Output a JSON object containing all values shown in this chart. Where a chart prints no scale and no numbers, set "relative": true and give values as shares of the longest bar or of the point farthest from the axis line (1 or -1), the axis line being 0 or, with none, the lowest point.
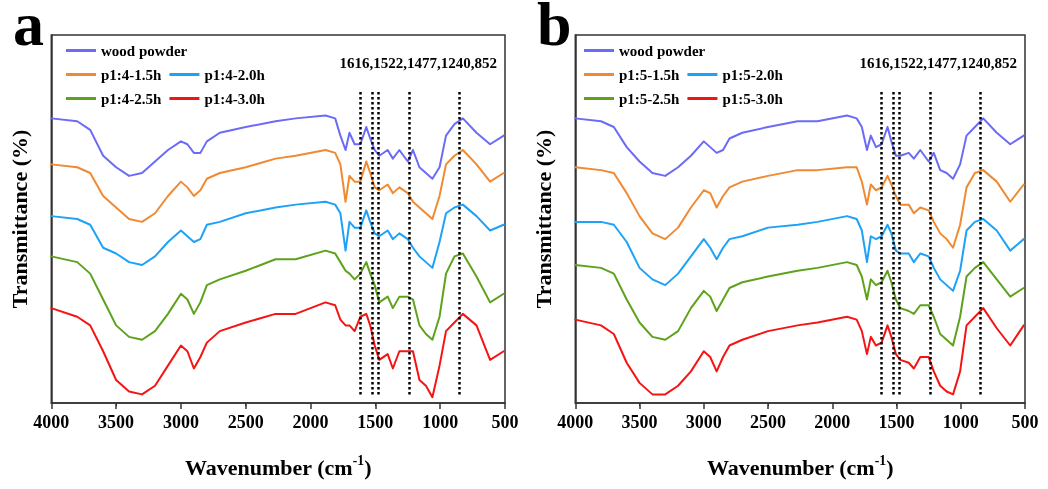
{
  "chart_data": [
    {
      "type": "line",
      "title": "a",
      "xlabel": "Wavenumber (cm$^{-1}$)",
      "ylabel": "Transmittance (%)",
      "relative": true,
      "tick_labels": "x",
      "grid": false,
      "legend": "top left",
      "marker": "none",
      "line_style": "solid",
      "xlim": [
        4000,
        500
      ],
      "xticks": [
        4000,
        3500,
        3000,
        2500,
        2000,
        1500,
        1000,
        500
      ],
      "x": [
        4000,
        3800,
        3700,
        3600,
        3500,
        3400,
        3300,
        3200,
        3100,
        3000,
        2950,
        2900,
        2850,
        2800,
        2700,
        2500,
        2270,
        2115,
        1885,
        1810,
        1770,
        1730,
        1700,
        1660,
        1616,
        1570,
        1540,
        1505,
        1470,
        1405,
        1365,
        1315,
        1250,
        1210,
        1160,
        1110,
        1060,
        1005,
        955,
        890,
        825,
        720,
        615,
        510
      ],
      "series": [
        {
          "name": "wood powder",
          "color": "#6b6bf7",
          "values": [
            0.99,
            0.98,
            0.95,
            0.86,
            0.82,
            0.79,
            0.8,
            0.84,
            0.88,
            0.91,
            0.9,
            0.87,
            0.87,
            0.91,
            0.94,
            0.96,
            0.98,
            0.99,
            1.0,
            0.99,
            0.93,
            0.88,
            0.94,
            0.9,
            0.9,
            0.96,
            0.92,
            0.88,
            0.86,
            0.88,
            0.85,
            0.88,
            0.84,
            0.88,
            0.82,
            0.8,
            0.78,
            0.82,
            0.93,
            0.97,
            0.99,
            0.94,
            0.9,
            0.93
          ]
        },
        {
          "name": "p1:4-1.5h",
          "color": "#f08a32",
          "values": [
            0.83,
            0.82,
            0.8,
            0.72,
            0.68,
            0.64,
            0.63,
            0.66,
            0.72,
            0.77,
            0.75,
            0.72,
            0.74,
            0.78,
            0.8,
            0.82,
            0.85,
            0.86,
            0.88,
            0.87,
            0.83,
            0.7,
            0.79,
            0.77,
            0.77,
            0.84,
            0.8,
            0.75,
            0.74,
            0.76,
            0.73,
            0.75,
            0.73,
            0.7,
            0.68,
            0.66,
            0.64,
            0.72,
            0.83,
            0.86,
            0.88,
            0.83,
            0.77,
            0.8
          ]
        },
        {
          "name": "p1:4-2.0h",
          "color": "#1ea2f8",
          "values": [
            0.65,
            0.64,
            0.62,
            0.54,
            0.52,
            0.49,
            0.48,
            0.51,
            0.56,
            0.6,
            0.58,
            0.56,
            0.57,
            0.62,
            0.63,
            0.66,
            0.68,
            0.69,
            0.7,
            0.69,
            0.66,
            0.53,
            0.63,
            0.61,
            0.61,
            0.67,
            0.63,
            0.59,
            0.58,
            0.6,
            0.57,
            0.59,
            0.57,
            0.54,
            0.51,
            0.49,
            0.47,
            0.56,
            0.66,
            0.68,
            0.69,
            0.65,
            0.6,
            0.62
          ]
        },
        {
          "name": "p1:4-2.5h",
          "color": "#5ea21c",
          "values": [
            0.51,
            0.49,
            0.45,
            0.36,
            0.27,
            0.23,
            0.22,
            0.25,
            0.31,
            0.38,
            0.36,
            0.31,
            0.35,
            0.41,
            0.43,
            0.46,
            0.5,
            0.5,
            0.53,
            0.52,
            0.49,
            0.46,
            0.45,
            0.43,
            0.45,
            0.49,
            0.45,
            0.41,
            0.35,
            0.37,
            0.33,
            0.37,
            0.37,
            0.36,
            0.27,
            0.24,
            0.22,
            0.3,
            0.45,
            0.51,
            0.52,
            0.44,
            0.35,
            0.38
          ]
        },
        {
          "name": "p1:4-3.0h",
          "color": "#f51414",
          "values": [
            0.33,
            0.3,
            0.27,
            0.18,
            0.08,
            0.04,
            0.03,
            0.06,
            0.13,
            0.2,
            0.18,
            0.12,
            0.16,
            0.21,
            0.25,
            0.28,
            0.31,
            0.31,
            0.35,
            0.34,
            0.29,
            0.27,
            0.27,
            0.25,
            0.3,
            0.31,
            0.27,
            0.2,
            0.15,
            0.17,
            0.12,
            0.18,
            0.18,
            0.18,
            0.08,
            0.06,
            0.02,
            0.13,
            0.25,
            0.28,
            0.31,
            0.27,
            0.15,
            0.18
          ]
        }
      ],
      "ref_lines": [
        {
          "axis": "x",
          "value": 1616,
          "color": "#000000",
          "line_style": "dotted"
        },
        {
          "axis": "x",
          "value": 1522,
          "color": "#000000",
          "line_style": "dotted"
        },
        {
          "axis": "x",
          "value": 1477,
          "color": "#000000",
          "line_style": "dotted"
        },
        {
          "axis": "x",
          "value": 1240,
          "color": "#000000",
          "line_style": "dotted"
        },
        {
          "axis": "x",
          "value": 852,
          "color": "#000000",
          "line_style": "dotted"
        }
      ],
      "annotations": [
        "1616,1522,1477,1240,852"
      ]
    },
    {
      "type": "line",
      "title": "b",
      "xlabel": "Wavenumber (cm$^{-1}$)",
      "ylabel": "Transmittance (%)",
      "relative": true,
      "tick_labels": "x",
      "grid": false,
      "legend": "top left",
      "marker": "none",
      "line_style": "solid",
      "xlim": [
        4000,
        500
      ],
      "xticks": [
        4000,
        3500,
        3000,
        2500,
        2000,
        1500,
        1000,
        500
      ],
      "x": [
        4000,
        3800,
        3700,
        3600,
        3500,
        3400,
        3300,
        3200,
        3100,
        3000,
        2950,
        2900,
        2850,
        2800,
        2700,
        2500,
        2270,
        2115,
        1885,
        1810,
        1770,
        1730,
        1700,
        1660,
        1616,
        1570,
        1540,
        1505,
        1470,
        1405,
        1365,
        1315,
        1250,
        1210,
        1160,
        1110,
        1060,
        1005,
        955,
        890,
        825,
        720,
        615,
        510
      ],
      "series": [
        {
          "name": "wood powder",
          "color": "#6b6bf7",
          "values": [
            0.99,
            0.98,
            0.96,
            0.89,
            0.84,
            0.8,
            0.79,
            0.82,
            0.86,
            0.91,
            0.89,
            0.87,
            0.88,
            0.92,
            0.94,
            0.96,
            0.98,
            0.98,
            1.0,
            0.99,
            0.96,
            0.88,
            0.93,
            0.89,
            0.9,
            0.96,
            0.91,
            0.86,
            0.86,
            0.87,
            0.85,
            0.88,
            0.84,
            0.87,
            0.81,
            0.8,
            0.78,
            0.83,
            0.93,
            0.96,
            0.99,
            0.94,
            0.9,
            0.93
          ]
        },
        {
          "name": "p1:5-1.5h",
          "color": "#f08a32",
          "values": [
            0.82,
            0.81,
            0.8,
            0.73,
            0.65,
            0.59,
            0.57,
            0.61,
            0.68,
            0.74,
            0.73,
            0.68,
            0.72,
            0.75,
            0.77,
            0.79,
            0.81,
            0.81,
            0.82,
            0.82,
            0.77,
            0.69,
            0.76,
            0.74,
            0.75,
            0.79,
            0.76,
            0.72,
            0.69,
            0.69,
            0.66,
            0.68,
            0.67,
            0.63,
            0.59,
            0.57,
            0.54,
            0.62,
            0.75,
            0.8,
            0.81,
            0.77,
            0.7,
            0.76
          ]
        },
        {
          "name": "p1:5-2.0h",
          "color": "#1ea2f8",
          "values": [
            0.63,
            0.63,
            0.62,
            0.56,
            0.47,
            0.43,
            0.41,
            0.45,
            0.51,
            0.57,
            0.54,
            0.5,
            0.54,
            0.57,
            0.58,
            0.61,
            0.62,
            0.63,
            0.65,
            0.64,
            0.6,
            0.49,
            0.58,
            0.57,
            0.58,
            0.62,
            0.59,
            0.53,
            0.52,
            0.52,
            0.49,
            0.52,
            0.51,
            0.47,
            0.43,
            0.41,
            0.39,
            0.46,
            0.6,
            0.63,
            0.64,
            0.6,
            0.53,
            0.57
          ]
        },
        {
          "name": "p1:5-2.5h",
          "color": "#5ea21c",
          "values": [
            0.48,
            0.47,
            0.45,
            0.36,
            0.28,
            0.23,
            0.22,
            0.25,
            0.33,
            0.39,
            0.37,
            0.32,
            0.36,
            0.4,
            0.42,
            0.44,
            0.46,
            0.47,
            0.49,
            0.48,
            0.44,
            0.36,
            0.43,
            0.41,
            0.42,
            0.46,
            0.42,
            0.36,
            0.33,
            0.32,
            0.31,
            0.34,
            0.34,
            0.3,
            0.24,
            0.22,
            0.2,
            0.3,
            0.44,
            0.47,
            0.49,
            0.43,
            0.37,
            0.4
          ]
        },
        {
          "name": "p1:5-3.0h",
          "color": "#f51414",
          "values": [
            0.29,
            0.27,
            0.24,
            0.14,
            0.07,
            0.03,
            0.03,
            0.06,
            0.11,
            0.18,
            0.16,
            0.11,
            0.16,
            0.2,
            0.22,
            0.25,
            0.27,
            0.28,
            0.3,
            0.29,
            0.25,
            0.17,
            0.23,
            0.2,
            0.21,
            0.27,
            0.23,
            0.17,
            0.15,
            0.14,
            0.12,
            0.16,
            0.16,
            0.11,
            0.06,
            0.04,
            0.03,
            0.11,
            0.27,
            0.3,
            0.33,
            0.26,
            0.2,
            0.27
          ]
        }
      ],
      "ref_lines": [
        {
          "axis": "x",
          "value": 1616,
          "color": "#000000",
          "line_style": "dotted"
        },
        {
          "axis": "x",
          "value": 1522,
          "color": "#000000",
          "line_style": "dotted"
        },
        {
          "axis": "x",
          "value": 1477,
          "color": "#000000",
          "line_style": "dotted"
        },
        {
          "axis": "x",
          "value": 1240,
          "color": "#000000",
          "line_style": "dotted"
        },
        {
          "axis": "x",
          "value": 852,
          "color": "#000000",
          "line_style": "dotted"
        }
      ],
      "annotations": [
        "1616,1522,1477,1240,852"
      ]
    }
  ]
}
